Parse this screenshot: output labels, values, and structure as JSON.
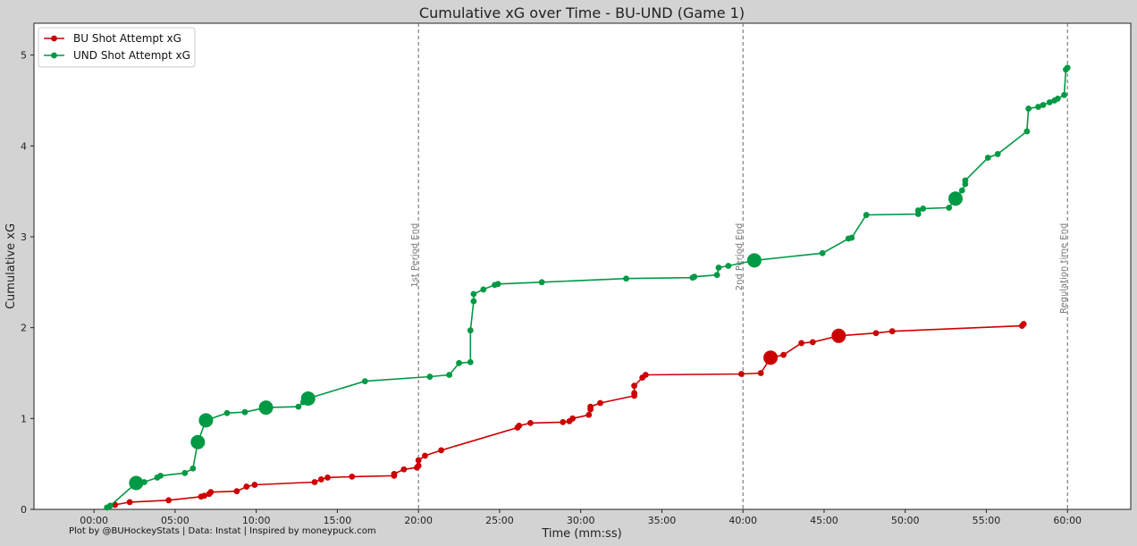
{
  "chart_data": {
    "type": "line",
    "title": "Cumulative xG over Time - BU-UND (Game 1)",
    "xlabel": "Time (mm:ss)",
    "ylabel": "Cumulative xG",
    "xlim": [
      -3.7,
      63.9
    ],
    "ylim": [
      0,
      5.35
    ],
    "x_ticks": [
      0,
      5,
      10,
      15,
      20,
      25,
      30,
      35,
      40,
      45,
      50,
      55,
      60
    ],
    "x_tick_labels": [
      "00:00",
      "05:00",
      "10:00",
      "15:00",
      "20:00",
      "25:00",
      "30:00",
      "35:00",
      "40:00",
      "45:00",
      "50:00",
      "55:00",
      "60:00"
    ],
    "y_ticks": [
      0,
      1,
      2,
      3,
      4,
      5
    ],
    "y_tick_labels": [
      "0",
      "1",
      "2",
      "3",
      "4",
      "5"
    ],
    "legend_position": "top-left",
    "credit": "Plot by @BUHockeyStats | Data: Instat | Inspired by moneypuck.com",
    "vlines": [
      {
        "x": 20,
        "label": "1st Period End"
      },
      {
        "x": 40,
        "label": "2nd Period End"
      },
      {
        "x": 60,
        "label": "Regulation time End"
      }
    ],
    "series": [
      {
        "name": "BU Shot Attempt xG",
        "color": "#cc0000",
        "points": [
          [
            1.3,
            0.05,
            0
          ],
          [
            2.2,
            0.08,
            0
          ],
          [
            4.6,
            0.1,
            0
          ],
          [
            6.6,
            0.14,
            0
          ],
          [
            6.8,
            0.15,
            0
          ],
          [
            7.1,
            0.17,
            0
          ],
          [
            7.2,
            0.19,
            0
          ],
          [
            8.8,
            0.2,
            0
          ],
          [
            9.4,
            0.25,
            0
          ],
          [
            9.9,
            0.27,
            0
          ],
          [
            13.6,
            0.3,
            0
          ],
          [
            14.0,
            0.33,
            0
          ],
          [
            14.4,
            0.35,
            0
          ],
          [
            15.9,
            0.36,
            0
          ],
          [
            18.5,
            0.37,
            0
          ],
          [
            18.5,
            0.39,
            0
          ],
          [
            19.1,
            0.44,
            0
          ],
          [
            19.9,
            0.46,
            0
          ],
          [
            20.0,
            0.48,
            0
          ],
          [
            20.0,
            0.54,
            0
          ],
          [
            20.4,
            0.59,
            0
          ],
          [
            21.4,
            0.65,
            0
          ],
          [
            26.1,
            0.9,
            0
          ],
          [
            26.2,
            0.92,
            0
          ],
          [
            26.9,
            0.95,
            0
          ],
          [
            28.9,
            0.96,
            0
          ],
          [
            29.3,
            0.97,
            0
          ],
          [
            29.5,
            1.0,
            0
          ],
          [
            30.5,
            1.04,
            0
          ],
          [
            30.6,
            1.1,
            0
          ],
          [
            30.6,
            1.13,
            0
          ],
          [
            31.2,
            1.17,
            0
          ],
          [
            33.3,
            1.25,
            0
          ],
          [
            33.3,
            1.28,
            0
          ],
          [
            33.3,
            1.36,
            0
          ],
          [
            33.8,
            1.45,
            0
          ],
          [
            34.0,
            1.48,
            0
          ],
          [
            39.9,
            1.49,
            0
          ],
          [
            41.1,
            1.5,
            0
          ],
          [
            41.7,
            1.67,
            1
          ],
          [
            42.5,
            1.7,
            0
          ],
          [
            43.6,
            1.83,
            0
          ],
          [
            44.3,
            1.84,
            0
          ],
          [
            45.9,
            1.91,
            1
          ],
          [
            48.2,
            1.94,
            0
          ],
          [
            49.2,
            1.96,
            0
          ],
          [
            57.2,
            2.02,
            0
          ],
          [
            57.3,
            2.04,
            0
          ]
        ]
      },
      {
        "name": "UND Shot Attempt xG",
        "color": "#009944",
        "points": [
          [
            0.8,
            0.02,
            0
          ],
          [
            1.0,
            0.04,
            0
          ],
          [
            2.6,
            0.29,
            1
          ],
          [
            3.1,
            0.3,
            0
          ],
          [
            3.9,
            0.35,
            0
          ],
          [
            4.1,
            0.37,
            0
          ],
          [
            5.6,
            0.4,
            0
          ],
          [
            6.1,
            0.45,
            0
          ],
          [
            6.4,
            0.74,
            1
          ],
          [
            6.9,
            0.98,
            1
          ],
          [
            8.2,
            1.06,
            0
          ],
          [
            9.3,
            1.07,
            0
          ],
          [
            10.6,
            1.12,
            1
          ],
          [
            12.6,
            1.13,
            0
          ],
          [
            12.9,
            1.18,
            0
          ],
          [
            13.2,
            1.22,
            1
          ],
          [
            16.7,
            1.41,
            0
          ],
          [
            20.7,
            1.46,
            0
          ],
          [
            21.9,
            1.48,
            0
          ],
          [
            22.5,
            1.61,
            0
          ],
          [
            23.2,
            1.62,
            0
          ],
          [
            23.2,
            1.97,
            0
          ],
          [
            23.4,
            2.29,
            0
          ],
          [
            23.4,
            2.37,
            0
          ],
          [
            24.0,
            2.42,
            0
          ],
          [
            24.7,
            2.47,
            0
          ],
          [
            24.9,
            2.48,
            0
          ],
          [
            27.6,
            2.5,
            0
          ],
          [
            32.8,
            2.54,
            0
          ],
          [
            36.9,
            2.55,
            0
          ],
          [
            37.0,
            2.56,
            0
          ],
          [
            38.4,
            2.58,
            0
          ],
          [
            38.5,
            2.66,
            0
          ],
          [
            39.1,
            2.68,
            0
          ],
          [
            40.7,
            2.74,
            1
          ],
          [
            44.9,
            2.82,
            0
          ],
          [
            46.5,
            2.98,
            0
          ],
          [
            46.7,
            2.99,
            0
          ],
          [
            47.6,
            3.24,
            0
          ],
          [
            50.8,
            3.25,
            0
          ],
          [
            50.8,
            3.29,
            0
          ],
          [
            51.1,
            3.31,
            0
          ],
          [
            52.7,
            3.32,
            0
          ],
          [
            53.1,
            3.42,
            1
          ],
          [
            53.5,
            3.51,
            0
          ],
          [
            53.7,
            3.58,
            0
          ],
          [
            53.7,
            3.62,
            0
          ],
          [
            55.1,
            3.87,
            0
          ],
          [
            55.7,
            3.91,
            0
          ],
          [
            57.5,
            4.16,
            0
          ],
          [
            57.6,
            4.41,
            0
          ],
          [
            58.2,
            4.43,
            0
          ],
          [
            58.5,
            4.45,
            0
          ],
          [
            58.9,
            4.48,
            0
          ],
          [
            59.2,
            4.5,
            0
          ],
          [
            59.4,
            4.52,
            0
          ],
          [
            59.8,
            4.56,
            0
          ],
          [
            59.9,
            4.84,
            0
          ],
          [
            60.0,
            4.86,
            0
          ]
        ]
      }
    ]
  }
}
